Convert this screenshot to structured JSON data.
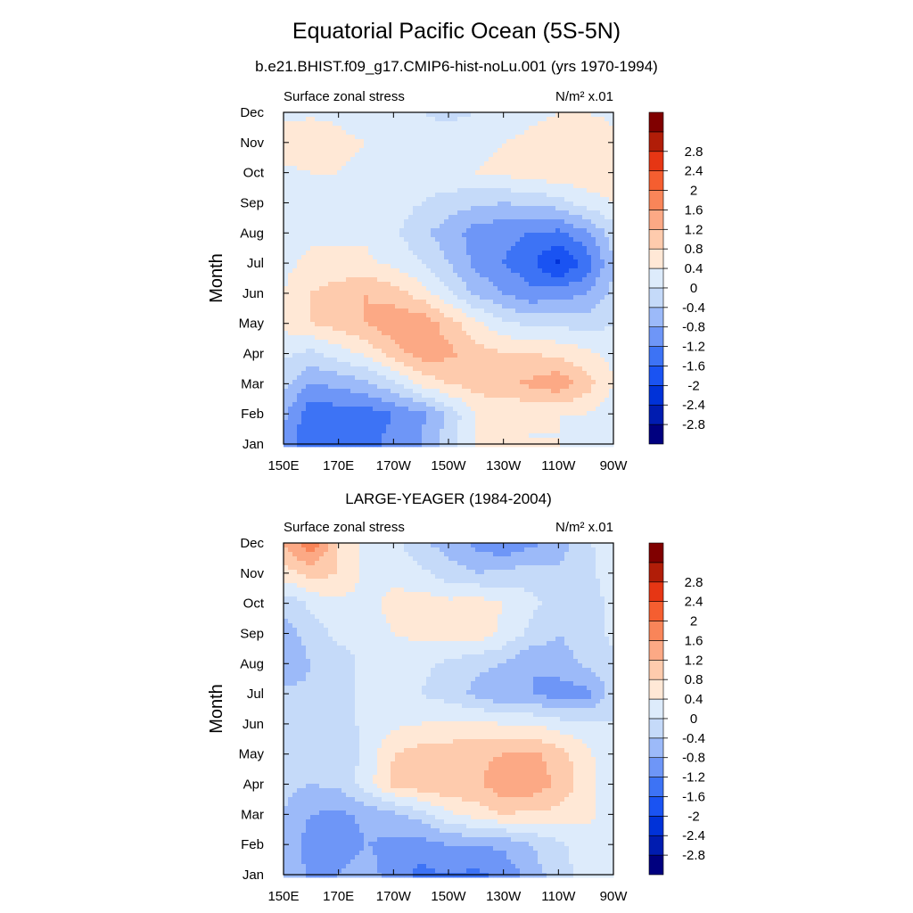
{
  "figure": {
    "title": "Equatorial Pacific Ocean (5S-5N)",
    "subtitle": "b.e21.BHIST.f09_g17.CMIP6-hist-noLu.001 (yrs 1970-1994)"
  },
  "colorbar": {
    "levels": [
      -2.8,
      -2.4,
      -2,
      -1.6,
      -1.2,
      -0.8,
      -0.4,
      0,
      0.4,
      0.8,
      1.2,
      1.6,
      2,
      2.4,
      2.8
    ],
    "labels": [
      "-2.8",
      "-2.4",
      "-2",
      "-1.6",
      "-1.2",
      "-0.8",
      "-0.4",
      "0",
      "0.4",
      "0.8",
      "1.2",
      "1.6",
      "2",
      "2.4",
      "2.8"
    ],
    "colors": [
      "#00007f",
      "#001cb0",
      "#0032d8",
      "#1a53f2",
      "#3d73f5",
      "#6e96f7",
      "#9cbaf9",
      "#c5daf9",
      "#ddebfb",
      "#ffe8d6",
      "#fecbad",
      "#fca985",
      "#f98559",
      "#f55e30",
      "#e63614",
      "#b11d08",
      "#800000"
    ]
  },
  "chart_data": [
    {
      "type": "heatmap",
      "title": "",
      "panel_label": "",
      "left_label": "Surface zonal stress",
      "units_label": "N/m² x.01",
      "ylabel": "Month",
      "xlabel": "",
      "x_ticks": [
        "150E",
        "170E",
        "170W",
        "150W",
        "130W",
        "110W",
        "90W"
      ],
      "y_ticks": [
        "Jan",
        "Feb",
        "Mar",
        "Apr",
        "May",
        "Jun",
        "Jul",
        "Aug",
        "Sep",
        "Oct",
        "Nov",
        "Dec"
      ],
      "x": [
        150,
        160,
        170,
        180,
        190,
        200,
        210,
        220,
        230,
        240,
        250,
        260,
        270
      ],
      "y": [
        "Jan",
        "Feb",
        "Mar",
        "Apr",
        "May",
        "Jun",
        "Jul",
        "Aug",
        "Sep",
        "Oct",
        "Nov",
        "Dec"
      ],
      "z": [
        [
          -0.9,
          -1.6,
          -1.5,
          -1.3,
          -1.1,
          -0.8,
          -0.2,
          0.4,
          0.5,
          0.4,
          0.4,
          0.3,
          0.1
        ],
        [
          -0.7,
          -1.5,
          -1.4,
          -1.4,
          -1.2,
          -0.9,
          -0.3,
          0.4,
          0.5,
          0.4,
          0.4,
          0.4,
          0.2
        ],
        [
          -0.3,
          -0.8,
          -0.7,
          -0.5,
          -0.1,
          0.5,
          0.8,
          1.0,
          1.1,
          1.3,
          1.5,
          1.0,
          0.4
        ],
        [
          0.1,
          -0.1,
          0.2,
          0.5,
          1.0,
          1.4,
          1.3,
          1.0,
          0.8,
          0.8,
          0.7,
          0.5,
          0.3
        ],
        [
          0.5,
          0.8,
          1.0,
          1.2,
          1.5,
          1.5,
          1.0,
          0.5,
          0.1,
          -0.1,
          -0.1,
          -0.2,
          0.0
        ],
        [
          0.4,
          0.8,
          1.0,
          1.2,
          1.0,
          0.6,
          0.1,
          -0.5,
          -0.8,
          -1.1,
          -1.0,
          -0.8,
          -0.3
        ],
        [
          0.3,
          0.5,
          0.5,
          0.5,
          0.3,
          0.0,
          -0.4,
          -0.9,
          -1.2,
          -1.5,
          -2.1,
          -1.5,
          -0.4
        ],
        [
          0.0,
          0.3,
          0.3,
          0.3,
          0.1,
          -0.3,
          -0.6,
          -1.0,
          -1.1,
          -1.2,
          -1.3,
          -0.9,
          -0.2
        ],
        [
          0.2,
          0.3,
          0.4,
          0.4,
          0.2,
          0.0,
          -0.2,
          -0.3,
          -0.4,
          -0.3,
          -0.2,
          0.2,
          0.4
        ],
        [
          0.3,
          0.4,
          0.4,
          0.3,
          0.3,
          0.2,
          0.3,
          0.4,
          0.5,
          0.6,
          0.7,
          0.7,
          0.6
        ],
        [
          0.6,
          0.8,
          0.5,
          0.4,
          0.3,
          0.2,
          0.2,
          0.3,
          0.4,
          0.5,
          0.6,
          0.8,
          0.5
        ],
        [
          0.3,
          0.3,
          0.3,
          0.2,
          0.1,
          0.0,
          -0.1,
          0.0,
          0.1,
          0.3,
          0.4,
          0.4,
          0.3
        ]
      ]
    },
    {
      "type": "heatmap",
      "title": "",
      "panel_label": "LARGE-YEAGER (1984-2004)",
      "left_label": "Surface zonal stress",
      "units_label": "N/m² x.01",
      "ylabel": "Month",
      "xlabel": "",
      "x_ticks": [
        "150E",
        "170E",
        "170W",
        "150W",
        "130W",
        "110W",
        "90W"
      ],
      "y_ticks": [
        "Jan",
        "Feb",
        "Mar",
        "Apr",
        "May",
        "Jun",
        "Jul",
        "Aug",
        "Sep",
        "Oct",
        "Nov",
        "Dec"
      ],
      "x": [
        150,
        160,
        170,
        180,
        190,
        200,
        210,
        220,
        230,
        240,
        250,
        260,
        270
      ],
      "y": [
        "Jan",
        "Feb",
        "Mar",
        "Apr",
        "May",
        "Jun",
        "Jul",
        "Aug",
        "Sep",
        "Oct",
        "Nov",
        "Dec"
      ],
      "z": [
        [
          -0.4,
          -0.9,
          -0.8,
          -0.6,
          -1.0,
          -1.3,
          -1.2,
          -1.3,
          -1.1,
          -0.6,
          -0.2,
          0.2,
          0.3
        ],
        [
          -0.5,
          -1.0,
          -1.0,
          -0.8,
          -0.9,
          -1.0,
          -0.8,
          -0.8,
          -0.7,
          -0.4,
          -0.1,
          0.2,
          0.3
        ],
        [
          -0.4,
          -0.8,
          -0.9,
          -0.7,
          -0.5,
          -0.2,
          0.3,
          0.6,
          0.8,
          0.7,
          0.7,
          0.5,
          0.2
        ],
        [
          -0.3,
          -0.4,
          -0.3,
          0.2,
          0.9,
          1.1,
          1.2,
          1.1,
          1.5,
          1.5,
          1.1,
          0.6,
          0.1
        ],
        [
          -0.3,
          -0.4,
          -0.3,
          0.1,
          0.8,
          1.0,
          1.0,
          1.1,
          1.2,
          1.3,
          1.0,
          0.5,
          0.1
        ],
        [
          -0.2,
          -0.3,
          -0.2,
          0.1,
          0.3,
          0.4,
          0.5,
          0.5,
          0.4,
          0.4,
          0.2,
          0.1,
          0.0
        ],
        [
          -0.3,
          -0.3,
          -0.2,
          0.1,
          0.2,
          0.0,
          -0.2,
          -0.5,
          -0.8,
          -0.8,
          -1.0,
          -1.0,
          -0.2
        ],
        [
          -0.8,
          -0.4,
          -0.2,
          0.1,
          0.2,
          0.1,
          -0.1,
          -0.3,
          -0.4,
          -0.8,
          -0.6,
          -0.3,
          -0.1
        ],
        [
          -0.6,
          -0.2,
          0.1,
          0.2,
          0.4,
          0.5,
          0.6,
          0.7,
          0.3,
          -0.1,
          -0.4,
          -0.2,
          0.1
        ],
        [
          -0.3,
          0.1,
          0.3,
          0.3,
          0.5,
          0.6,
          0.5,
          0.6,
          0.4,
          0.1,
          -0.2,
          -0.2,
          0.1
        ],
        [
          0.6,
          1.0,
          0.8,
          0.3,
          0.3,
          0.1,
          -0.2,
          -0.4,
          -0.3,
          -0.2,
          -0.3,
          -0.2,
          0.3
        ],
        [
          1.3,
          1.9,
          0.8,
          0.3,
          0.1,
          -0.3,
          -0.6,
          -0.9,
          -1.2,
          -0.9,
          -0.6,
          -0.1,
          0.3
        ]
      ]
    }
  ]
}
